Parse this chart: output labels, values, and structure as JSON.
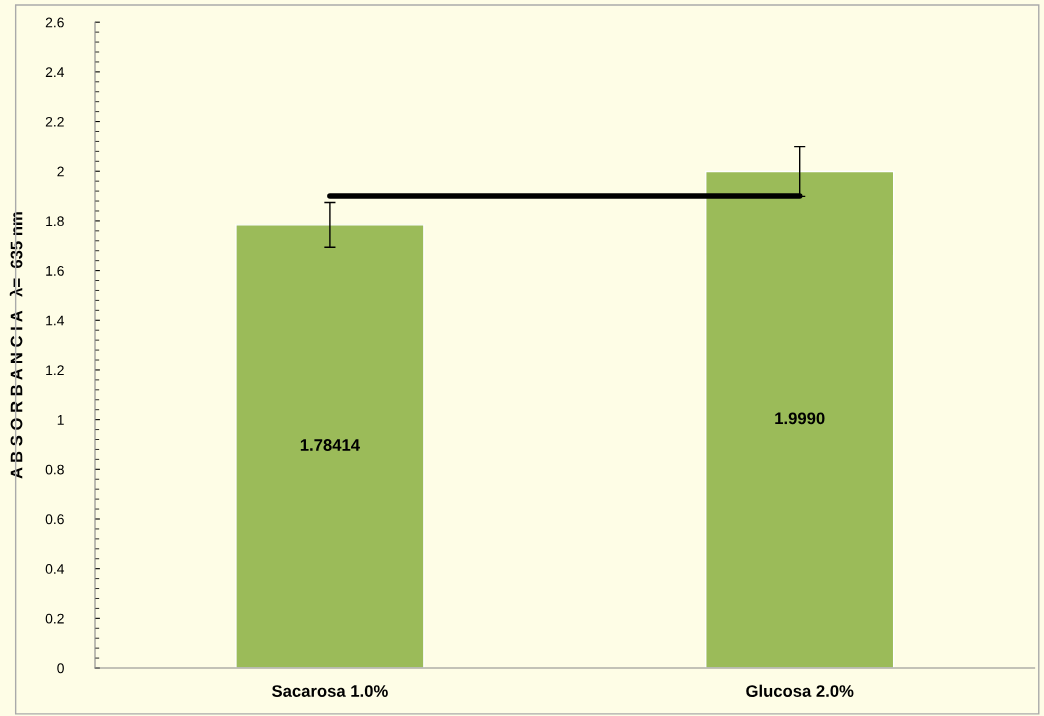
{
  "chart_data": {
    "type": "bar",
    "ylabel": "A B S O R B A N C I A   λ=  635 nm",
    "categories": [
      "Sacarosa 1.0%",
      "Glucosa 2.0%"
    ],
    "series": [
      {
        "color": "#9bbb59",
        "values": [
          1.78414,
          1.999
        ],
        "errors": [
          0.09,
          0.1
        ],
        "value_labels": [
          "1.78414",
          "1.9990"
        ]
      },
      {
        "type": "line",
        "color": "#000000",
        "values": [
          1.9,
          1.9
        ]
      }
    ],
    "ylim": [
      0,
      2.6
    ],
    "yticks": [
      0,
      0.2,
      0.4,
      0.6,
      0.8,
      1,
      1.2,
      1.4,
      1.6,
      1.8,
      2,
      2.2,
      2.4,
      2.6
    ],
    "grid": false,
    "legend": false,
    "marker": "none"
  }
}
